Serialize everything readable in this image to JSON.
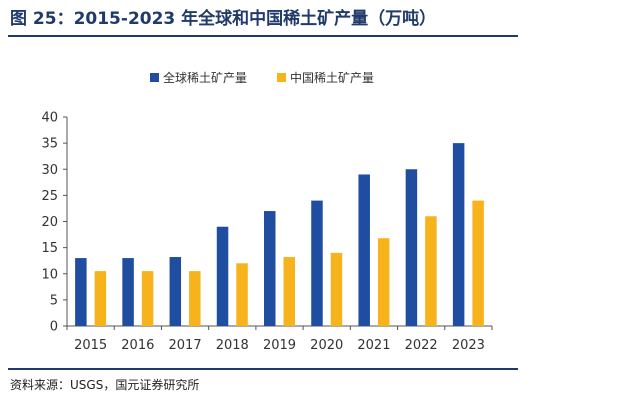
{
  "header": {
    "title": "图 25：2015-2023 年全球和中国稀土矿产量（万吨）"
  },
  "footer": {
    "source": "资料来源：USGS，国元证券研究所"
  },
  "colors": {
    "global": "#1f4ea1",
    "china": "#f6b31c",
    "rule": "#1f3a6b",
    "axis": "#555555"
  },
  "chart_data": {
    "type": "bar",
    "categories": [
      "2015",
      "2016",
      "2017",
      "2018",
      "2019",
      "2020",
      "2021",
      "2022",
      "2023"
    ],
    "series": [
      {
        "name": "全球稀土矿产量",
        "values": [
          13,
          13,
          13.2,
          19,
          22,
          24,
          29,
          30,
          35
        ]
      },
      {
        "name": "中国稀土矿产量",
        "values": [
          10.5,
          10.5,
          10.5,
          12,
          13.2,
          14,
          16.8,
          21,
          24
        ]
      }
    ],
    "ylim": [
      0,
      40
    ],
    "yticks": [
      0,
      5,
      10,
      15,
      20,
      25,
      30,
      35,
      40
    ],
    "legend_position": "top",
    "grid": false
  }
}
